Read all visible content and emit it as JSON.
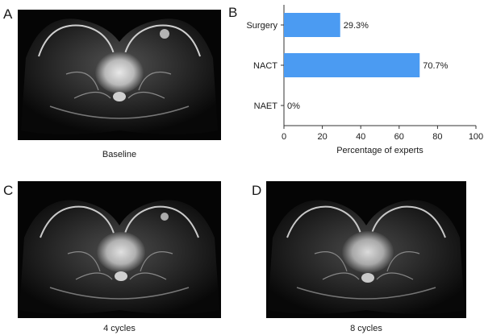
{
  "panels": {
    "a": {
      "letter": "A",
      "caption": "Baseline"
    },
    "b": {
      "letter": "B"
    },
    "c": {
      "letter": "C",
      "caption": "4 cycles"
    },
    "d": {
      "letter": "D",
      "caption": "8 cycles"
    }
  },
  "chart_data": {
    "type": "bar",
    "orientation": "horizontal",
    "categories": [
      "Surgery",
      "NACT",
      "NAET"
    ],
    "values": [
      29.3,
      70.7,
      0
    ],
    "value_labels": [
      "29.3%",
      "70.7%",
      "0%"
    ],
    "xlabel": "Percentage of experts",
    "xlim": [
      0,
      100
    ],
    "xticks": [
      0,
      20,
      40,
      60,
      80,
      100
    ],
    "grid": false,
    "bar_color": "#4b9bf2"
  }
}
